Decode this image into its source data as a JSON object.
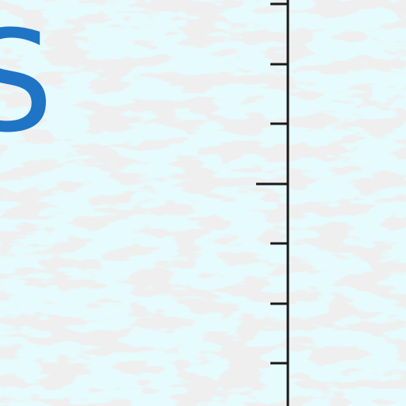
{
  "canvas": {
    "background": "#e6fbfd",
    "texture_color": "#dcdcdc"
  },
  "letter": {
    "text": "S",
    "color": "#1f74c6"
  },
  "ruler": {
    "line_color": "#1a1a1a",
    "ticks": [
      {
        "kind": "minor"
      },
      {
        "kind": "minor"
      },
      {
        "kind": "minor"
      },
      {
        "kind": "major"
      },
      {
        "kind": "minor"
      },
      {
        "kind": "minor"
      },
      {
        "kind": "minor"
      }
    ]
  }
}
